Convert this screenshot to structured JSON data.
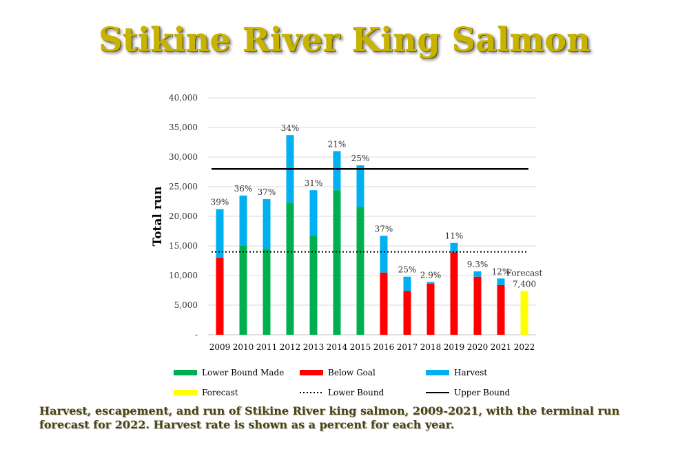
{
  "title": "Stikine River King Salmon",
  "caption": "Harvest, escapement, and run of Stikine River king salmon, 2009-2021, with the terminal run forecast for 2022. Harvest rate is shown as a percent for each year.",
  "colors": {
    "lower_bound_made": "#00b050",
    "below_goal": "#ff0000",
    "harvest": "#00b0f0",
    "forecast": "#ffff00",
    "title": "#c8b400"
  },
  "chart_data": {
    "type": "bar",
    "stacked": true,
    "categories": [
      "2009",
      "2010",
      "2011",
      "2012",
      "2013",
      "2014",
      "2015",
      "2016",
      "2017",
      "2018",
      "2019",
      "2020",
      "2021",
      "2022"
    ],
    "ylabel": "Total run",
    "ylim": [
      0,
      40000
    ],
    "yticks": [
      0,
      5000,
      10000,
      15000,
      20000,
      25000,
      30000,
      35000,
      40000
    ],
    "ytick_labels": [
      "-",
      "5,000",
      "10,000",
      "15,000",
      "20,000",
      "25,000",
      "30,000",
      "35,000",
      "40,000"
    ],
    "grid": true,
    "escapement": [
      13000,
      15100,
      14500,
      22300,
      16700,
      24400,
      21600,
      10500,
      7400,
      8600,
      13900,
      9800,
      8400,
      0
    ],
    "escapement_status": [
      "below",
      "made",
      "made",
      "made",
      "made",
      "made",
      "made",
      "below",
      "below",
      "below",
      "below",
      "below",
      "below",
      "none"
    ],
    "harvest": [
      8200,
      8400,
      8400,
      11400,
      7700,
      6600,
      7000,
      6200,
      2400,
      300,
      1600,
      900,
      1100,
      0
    ],
    "forecast": [
      0,
      0,
      0,
      0,
      0,
      0,
      0,
      0,
      0,
      0,
      0,
      0,
      0,
      7400
    ],
    "bar_labels": [
      "39%",
      "36%",
      "37%",
      "34%",
      "31%",
      "21%",
      "25%",
      "37%",
      "25%",
      "2.9%",
      "11%",
      "9.3%",
      "12%",
      "Forecast\n7,400"
    ],
    "lower_bound": 14000,
    "upper_bound": 28000,
    "legend": {
      "placement": "bottom",
      "entries": [
        {
          "label": "Lower Bound Made",
          "kind": "box",
          "color": "#00b050"
        },
        {
          "label": "Below Goal",
          "kind": "box",
          "color": "#ff0000"
        },
        {
          "label": "Harvest",
          "kind": "box",
          "color": "#00b0f0"
        },
        {
          "label": "Forecast",
          "kind": "box",
          "color": "#ffff00"
        },
        {
          "label": "Lower Bound",
          "kind": "dotted",
          "color": "#000000"
        },
        {
          "label": "Upper Bound",
          "kind": "solid",
          "color": "#000000"
        }
      ]
    }
  }
}
